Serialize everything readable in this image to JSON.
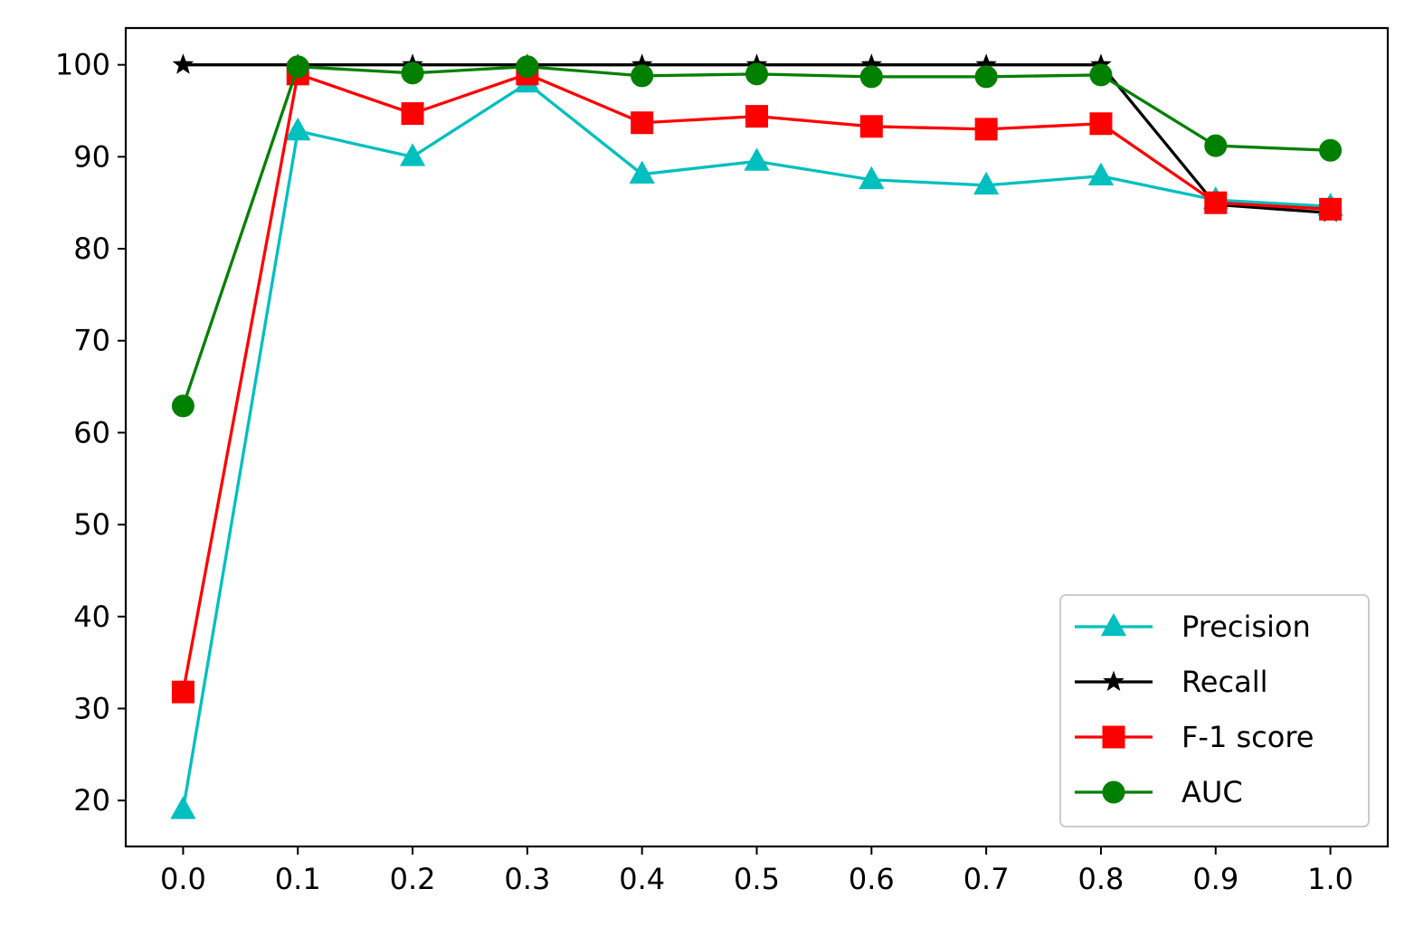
{
  "chart_data": {
    "type": "line",
    "title": "",
    "xlabel": "",
    "ylabel": "",
    "x": [
      0.0,
      0.1,
      0.2,
      0.3,
      0.4,
      0.5,
      0.6,
      0.7,
      0.8,
      0.9,
      1.0
    ],
    "xticks": [
      "0.0",
      "0.1",
      "0.2",
      "0.3",
      "0.4",
      "0.5",
      "0.6",
      "0.7",
      "0.8",
      "0.9",
      "1.0"
    ],
    "yticks": [
      "20",
      "30",
      "40",
      "50",
      "60",
      "70",
      "80",
      "90",
      "100"
    ],
    "xlim": [
      -0.05,
      1.05
    ],
    "ylim": [
      15,
      104
    ],
    "grid": false,
    "legend_position": "lower right",
    "series": [
      {
        "name": "Precision",
        "color": "#00bfbf",
        "marker": "triangle",
        "values": [
          19.0,
          92.8,
          90.0,
          98.0,
          88.1,
          89.5,
          87.5,
          86.9,
          87.9,
          85.3,
          84.6
        ]
      },
      {
        "name": "Recall",
        "color": "#000000",
        "marker": "star",
        "values": [
          100,
          100,
          100,
          100,
          100,
          100,
          100,
          100,
          100,
          84.8,
          83.9
        ]
      },
      {
        "name": "F-1 score",
        "color": "#ff0000",
        "marker": "square",
        "values": [
          31.8,
          99.0,
          94.7,
          99.0,
          93.7,
          94.4,
          93.3,
          93.0,
          93.6,
          85.0,
          84.3
        ]
      },
      {
        "name": "AUC",
        "color": "#008000",
        "marker": "circle",
        "values": [
          62.9,
          99.8,
          99.1,
          99.8,
          98.8,
          99.0,
          98.7,
          98.7,
          98.9,
          91.2,
          90.7
        ]
      }
    ]
  }
}
